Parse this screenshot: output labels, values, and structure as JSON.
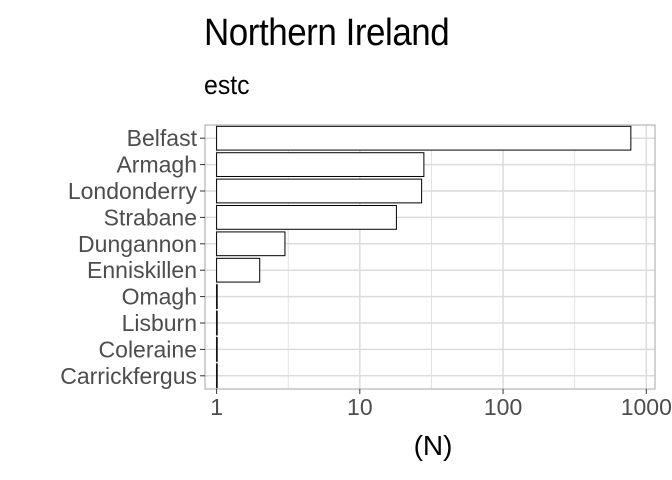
{
  "title": "Northern Ireland",
  "subtitle": "estc",
  "chart_data": {
    "type": "bar",
    "orientation": "horizontal",
    "categories": [
      "Belfast",
      "Armagh",
      "Londonderry",
      "Strabane",
      "Dungannon",
      "Enniskillen",
      "Omagh",
      "Lisburn",
      "Coleraine",
      "Carrickfergus"
    ],
    "values": [
      780,
      28,
      27,
      18,
      3,
      2,
      1,
      1,
      1,
      1
    ],
    "x_scale": "log10",
    "xlim": [
      0.83,
      1150
    ],
    "x_ticks": [
      1,
      10,
      100,
      1000
    ],
    "x_tick_labels": [
      "1",
      "10",
      "100",
      "1000"
    ],
    "xlabel": "(N)",
    "ylabel": "",
    "grid": true,
    "bar_fill": "#ffffff",
    "bar_stroke": "#000000",
    "panel_border": "#b3b3b3",
    "grid_color": "#dcdcdc"
  }
}
